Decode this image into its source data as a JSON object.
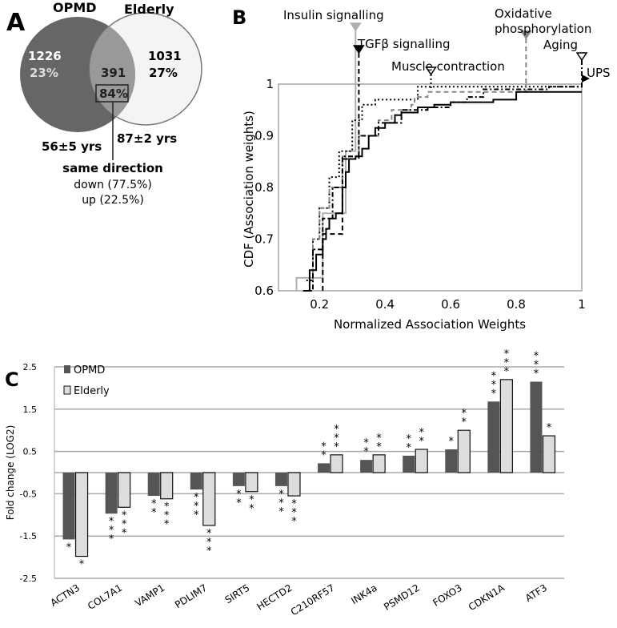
{
  "panel_a": {
    "label": "A",
    "set1": {
      "name": "OPMD",
      "count": "1226",
      "pct": "23%",
      "age": "56±5 yrs",
      "color": "#666666"
    },
    "set2": {
      "name": "Elderly",
      "count": "1031",
      "pct": "27%",
      "age": "87±2 yrs",
      "color": "#e6e6e6"
    },
    "overlap": {
      "count": "391",
      "pct": "84%"
    },
    "note": {
      "title": "same direction",
      "down": "down (77.5%)",
      "up": "up (22.5%)"
    }
  },
  "chart_data": [
    {
      "panel": "B",
      "type": "line",
      "xlabel": "Normalized Association Weights",
      "ylabel": "CDF (Association weights)",
      "xlim": [
        0.075,
        1
      ],
      "ylim": [
        0.6,
        1
      ],
      "xticks": [
        "0.2",
        "0.4",
        "0.6",
        "0.8",
        "1"
      ],
      "yticks": [
        "0.6",
        "0.7",
        "0.8",
        "0.9",
        "1"
      ],
      "series": [
        {
          "name": "Insulin signalling",
          "marker_x": 0.31,
          "color": "#b0b0b0",
          "style": "solid",
          "marker": "filled-down",
          "points": [
            [
              0.13,
              0.6
            ],
            [
              0.13,
              0.625
            ],
            [
              0.21,
              0.625
            ],
            [
              0.21,
              0.75
            ],
            [
              0.28,
              0.75
            ],
            [
              0.28,
              0.87
            ],
            [
              0.31,
              0.87
            ],
            [
              0.31,
              1.0
            ]
          ]
        },
        {
          "name": "TGFβ signalling",
          "marker_x": 0.32,
          "color": "#000000",
          "style": "dashed",
          "marker": "filled-down",
          "points": [
            [
              0.21,
              0.6
            ],
            [
              0.21,
              0.71
            ],
            [
              0.27,
              0.71
            ],
            [
              0.27,
              0.855
            ],
            [
              0.32,
              0.855
            ],
            [
              0.32,
              1.0
            ]
          ]
        },
        {
          "name": "Muscle contraction",
          "marker_x": 0.54,
          "color": "#000000",
          "style": "dotted",
          "marker": "open-down",
          "points": [
            [
              0.16,
              0.62
            ],
            [
              0.18,
              0.7
            ],
            [
              0.2,
              0.76
            ],
            [
              0.23,
              0.82
            ],
            [
              0.26,
              0.87
            ],
            [
              0.3,
              0.93
            ],
            [
              0.33,
              0.96
            ],
            [
              0.37,
              0.97
            ],
            [
              0.47,
              0.97
            ],
            [
              0.5,
              0.995
            ],
            [
              1,
              0.995
            ]
          ]
        },
        {
          "name": "Oxidative phosphorylation",
          "marker_x": 0.83,
          "color": "#888888",
          "style": "dashed",
          "marker": "filled-down",
          "points": [
            [
              0.16,
              0.6
            ],
            [
              0.18,
              0.7
            ],
            [
              0.2,
              0.76
            ],
            [
              0.23,
              0.8
            ],
            [
              0.27,
              0.86
            ],
            [
              0.32,
              0.9
            ],
            [
              0.38,
              0.93
            ],
            [
              0.42,
              0.95
            ],
            [
              0.48,
              0.96
            ],
            [
              0.49,
              0.975
            ],
            [
              0.53,
              0.975
            ],
            [
              0.53,
              0.985
            ],
            [
              0.83,
              0.985
            ],
            [
              0.83,
              1.0
            ]
          ]
        },
        {
          "name": "Aging",
          "marker_x": 1.0,
          "color": "#000000",
          "style": "dashdot",
          "marker": "open-down",
          "points": [
            [
              0.15,
              0.6
            ],
            [
              0.18,
              0.68
            ],
            [
              0.21,
              0.74
            ],
            [
              0.24,
              0.8
            ],
            [
              0.27,
              0.86
            ],
            [
              0.32,
              0.9
            ],
            [
              0.38,
              0.925
            ],
            [
              0.45,
              0.95
            ],
            [
              0.53,
              0.955
            ],
            [
              0.6,
              0.965
            ],
            [
              0.65,
              0.975
            ],
            [
              0.7,
              0.99
            ],
            [
              0.9,
              0.995
            ],
            [
              1,
              0.998
            ]
          ]
        },
        {
          "name": "UPS",
          "marker_x": 1.0,
          "color": "#000000",
          "style": "solid",
          "marker": "filled-right",
          "points": [
            [
              0.16,
              0.6
            ],
            [
              0.17,
              0.64
            ],
            [
              0.19,
              0.67
            ],
            [
              0.21,
              0.7
            ],
            [
              0.22,
              0.72
            ],
            [
              0.23,
              0.74
            ],
            [
              0.25,
              0.75
            ],
            [
              0.27,
              0.8
            ],
            [
              0.28,
              0.83
            ],
            [
              0.29,
              0.855
            ],
            [
              0.31,
              0.86
            ],
            [
              0.33,
              0.875
            ],
            [
              0.35,
              0.9
            ],
            [
              0.37,
              0.915
            ],
            [
              0.4,
              0.925
            ],
            [
              0.43,
              0.94
            ],
            [
              0.45,
              0.945
            ],
            [
              0.5,
              0.955
            ],
            [
              0.55,
              0.96
            ],
            [
              0.6,
              0.965
            ],
            [
              0.73,
              0.97
            ],
            [
              0.8,
              0.985
            ],
            [
              1,
              0.985
            ]
          ]
        }
      ]
    },
    {
      "panel": "C",
      "type": "bar",
      "ylabel": "Fold change (LOG2)",
      "ylim": [
        -2.5,
        2.5
      ],
      "yticks": [
        "2.5",
        "1.5",
        "0.5",
        "-0.5",
        "-1.5",
        "-2.5"
      ],
      "legend": "top-left",
      "categories": [
        "ACTN3",
        "COL7A1",
        "VAMP1",
        "PDLIM7",
        "SIRT5",
        "HECTD2",
        "C210RF57",
        "INK4a",
        "PSMD12",
        "FOXO3",
        "CDKN1A",
        "ATF3"
      ],
      "series": [
        {
          "name": "OPMD",
          "color": "#555555",
          "values": [
            -1.58,
            -0.97,
            -0.55,
            -0.4,
            -0.32,
            -0.32,
            0.22,
            0.3,
            0.4,
            0.55,
            1.68,
            2.15
          ],
          "significance": [
            "*",
            "***",
            "**",
            "***",
            "**",
            "***",
            "**",
            "**",
            "**",
            "*",
            "***",
            "***"
          ]
        },
        {
          "name": "Elderly",
          "color": "#dddddd",
          "values": [
            -1.98,
            -0.82,
            -0.62,
            -1.25,
            -0.45,
            -0.55,
            0.42,
            0.42,
            0.55,
            1.0,
            2.2,
            0.87
          ],
          "significance": [
            "*",
            "***",
            "***",
            "***",
            "**",
            "***",
            "***",
            "**",
            "**",
            "**",
            "***",
            "*"
          ]
        }
      ]
    }
  ],
  "panel_labels": {
    "b": "B",
    "c": "C"
  }
}
